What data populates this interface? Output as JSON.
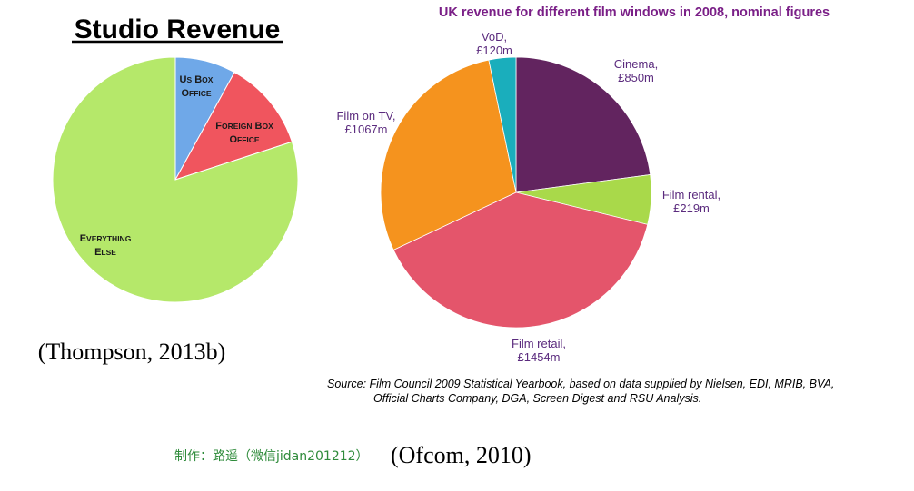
{
  "chart_data": [
    {
      "type": "pie",
      "title": "Studio Revenue",
      "slices": [
        {
          "label_lines": [
            "US Box",
            "Office"
          ],
          "value": 8,
          "color": "#6fa8e8"
        },
        {
          "label_lines": [
            "Foreign Box",
            "Office"
          ],
          "value": 12,
          "color": "#f0555e"
        },
        {
          "label_lines": [
            "Everything",
            "else"
          ],
          "value": 80,
          "color": "#b5e86a"
        }
      ],
      "citation": "(Thompson, 2013b)"
    },
    {
      "type": "pie",
      "title": "UK revenue for different film windows in 2008, nominal figures",
      "slices": [
        {
          "label_lines": [
            "Cinema,",
            "£850m"
          ],
          "value": 850,
          "color": "#62245f"
        },
        {
          "label_lines": [
            "Film rental,",
            "£219m"
          ],
          "value": 219,
          "color": "#a9d94a"
        },
        {
          "label_lines": [
            "Film retail,",
            "£1454m"
          ],
          "value": 1454,
          "color": "#e4556b"
        },
        {
          "label_lines": [
            "Film on TV,",
            "£1067m"
          ],
          "value": 1067,
          "color": "#f5931e"
        },
        {
          "label_lines": [
            "VoD,",
            "£120m"
          ],
          "value": 120,
          "color": "#1aaebc"
        }
      ],
      "source_lines": [
        "Source: Film Council 2009 Statistical Yearbook, based on data supplied by Nielsen, EDI, MRIB, BVA,",
        "Official Charts Company, DGA, Screen Digest and RSU Analysis."
      ],
      "citation": "(Ofcom, 2010)"
    }
  ],
  "watermark": "制作：路遥（微信jidan201212）"
}
